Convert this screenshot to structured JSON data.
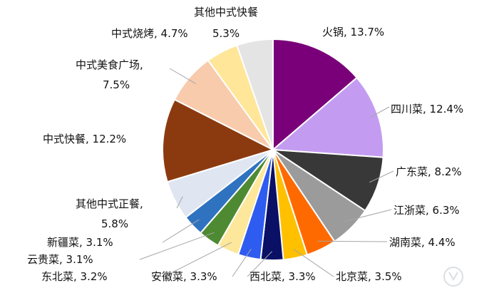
{
  "chart_data": {
    "type": "pie",
    "title": "",
    "slices": [
      {
        "label": "火锅",
        "value": 13.7,
        "text": "火锅, 13.7%",
        "color": "#7a007a"
      },
      {
        "label": "四川菜",
        "value": 12.4,
        "text": "四川菜, 12.4%",
        "color": "#c39cf2"
      },
      {
        "label": "广东菜",
        "value": 8.2,
        "text": "广东菜, 8.2%",
        "color": "#383838"
      },
      {
        "label": "江浙菜",
        "value": 6.3,
        "text": "江浙菜, 6.3%",
        "color": "#9b9b9b"
      },
      {
        "label": "湖南菜",
        "value": 4.4,
        "text": "湖南菜, 4.4%",
        "color": "#ff6a00"
      },
      {
        "label": "北京菜",
        "value": 3.5,
        "text": "北京菜, 3.5%",
        "color": "#ffc000"
      },
      {
        "label": "西北菜",
        "value": 3.3,
        "text": "西北菜, 3.3%",
        "color": "#0a1066"
      },
      {
        "label": "安徽菜",
        "value": 3.3,
        "text": "安徽菜, 3.3%",
        "color": "#2e5cf0"
      },
      {
        "label": "东北菜",
        "value": 3.2,
        "text": "东北菜, 3.2%",
        "color": "#fde79a"
      },
      {
        "label": "云贵菜",
        "value": 3.1,
        "text": "云贵菜, 3.1%",
        "color": "#4e8a32"
      },
      {
        "label": "新疆菜",
        "value": 3.1,
        "text": "新疆菜, 3.1%",
        "color": "#2f72c0"
      },
      {
        "label": "其他中式正餐",
        "value": 5.8,
        "text": "其他中式正餐,",
        "text2": "5.8%",
        "color": "#dfe6f2"
      },
      {
        "label": "中式快餐",
        "value": 12.2,
        "text": "中式快餐, 12.2%",
        "color": "#8b3a10"
      },
      {
        "label": "中式美食广场",
        "value": 7.5,
        "text": "中式美食广场,",
        "text2": "7.5%",
        "color": "#f8cbac"
      },
      {
        "label": "中式烧烤",
        "value": 4.7,
        "text": "中式烧烤, 4.7%",
        "color": "#ffe699"
      },
      {
        "label": "其他中式快餐",
        "value": 5.3,
        "text": "其他中式快餐",
        "text2": "5.3%",
        "color": "#e4e4e4"
      }
    ]
  }
}
